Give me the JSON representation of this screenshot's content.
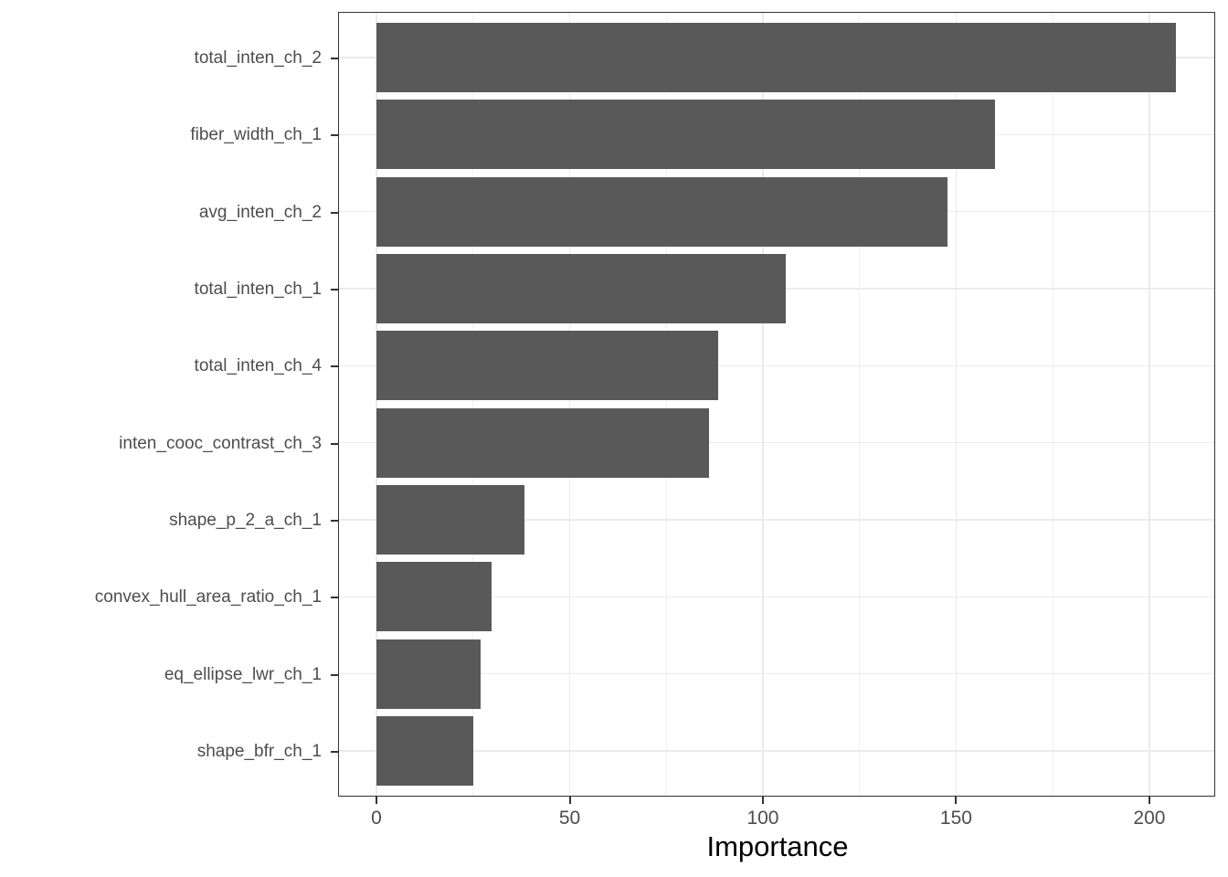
{
  "chart_data": {
    "type": "bar",
    "orientation": "horizontal",
    "title": "",
    "xlabel": "Importance",
    "ylabel": "",
    "categories": [
      "total_inten_ch_2",
      "fiber_width_ch_1",
      "avg_inten_ch_2",
      "total_inten_ch_1",
      "total_inten_ch_4",
      "inten_cooc_contrast_ch_3",
      "shape_p_2_a_ch_1",
      "convex_hull_area_ratio_ch_1",
      "eq_ellipse_lwr_ch_1",
      "shape_bfr_ch_1"
    ],
    "values": [
      206.8,
      160.0,
      147.8,
      105.8,
      88.5,
      86.0,
      38.2,
      29.8,
      27.0,
      25.0
    ],
    "x_ticks": [
      0,
      50,
      100,
      150,
      200
    ],
    "x_tick_labels": [
      "0",
      "50",
      "100",
      "150",
      "200"
    ],
    "x_minor_ticks": [
      25,
      75,
      125,
      175
    ],
    "xlim": [
      -9.7,
      216.8
    ],
    "grid": "vertical major+minor, horizontal major at category centers",
    "legend": "none",
    "bar_width_fraction": 0.9,
    "colors": {
      "bar": "#595959",
      "grid_major": "#EBEBEB",
      "grid_minor": "#F1F1F1",
      "panel_border": "#333333",
      "tick": "#333333",
      "tick_label": "#4D4D4D",
      "axis_title": "#000000",
      "background": "#FFFFFF"
    }
  }
}
